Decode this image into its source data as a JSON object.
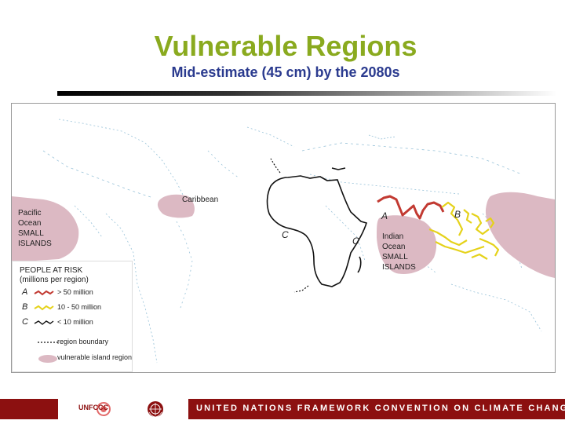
{
  "slide": {
    "title": "Vulnerable Regions",
    "subtitle": "Mid-estimate (45 cm) by the 2080s"
  },
  "map": {
    "labels": {
      "caribbean": "Caribbean",
      "pacific": "Pacific\nOcean\nSMALL\nISLANDS",
      "indian": "Indian\nOcean\nSMALL\nISLANDS"
    },
    "region_letters": {
      "a_asia": "A",
      "b_se_asia": "B",
      "c_west_africa": "C",
      "c_east_africa": "C"
    },
    "colors": {
      "vulnerable_island_region": "#dcb9c3",
      "category_a": "#c23a32",
      "category_b": "#e5d21a",
      "category_c": "#111111",
      "map_lines": "#6fa9c8"
    }
  },
  "legend": {
    "title": "PEOPLE AT RISK\n(millions per region)",
    "rows": [
      {
        "letter": "A",
        "text": "> 50 million"
      },
      {
        "letter": "B",
        "text": "10 - 50 million"
      },
      {
        "letter": "C",
        "text": "< 10 million"
      }
    ],
    "region_boundary": "region boundary",
    "vulnerable_island_region": "vulnerable island region"
  },
  "footer": {
    "unfccc": "UNFCCC",
    "text": "UNITED NATIONS FRAMEWORK CONVENTION ON CLIMATE CHANGE"
  }
}
